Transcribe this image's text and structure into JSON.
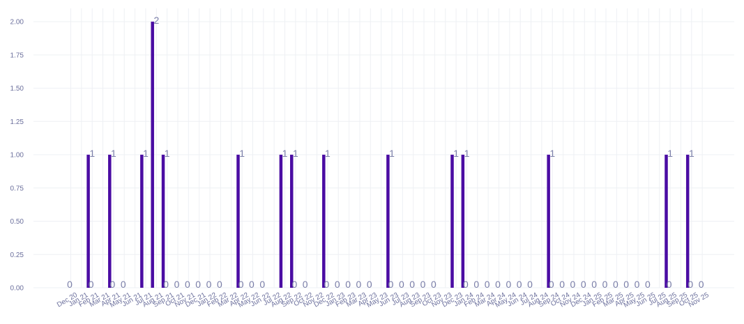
{
  "chart_data": {
    "type": "bar",
    "title": "",
    "xlabel": "",
    "ylabel": "",
    "ylim": [
      0,
      2.1
    ],
    "yticks": [
      "0.00",
      "0.25",
      "0.50",
      "0.75",
      "1.00",
      "1.25",
      "1.50",
      "1.75",
      "2.00"
    ],
    "grid": true,
    "bar_color": "#4a0ca3",
    "categories": [
      "Dec 20",
      "Jan 21",
      "Feb 21",
      "Mar 21",
      "Apr 21",
      "May 21",
      "Jun 21",
      "Jul 21",
      "Aug 21",
      "Sep 21",
      "Oct 21",
      "Nov 21",
      "Dec 21",
      "Jan 22",
      "Feb 22",
      "Mar 22",
      "Apr 22",
      "May 22",
      "Jun 22",
      "Jul 22",
      "Aug 22",
      "Sep 22",
      "Oct 22",
      "Nov 22",
      "Dec 22",
      "Jan 23",
      "Feb 23",
      "Mar 23",
      "Apr 23",
      "May 23",
      "Jun 23",
      "Jul 23",
      "Aug 23",
      "Sep 23",
      "Oct 23",
      "Nov 23",
      "Dec 23",
      "Jan 24",
      "Feb 24",
      "Mar 24",
      "Apr 24",
      "May 24",
      "Jun 24",
      "Jul 24",
      "Aug 24",
      "Sep 24",
      "Oct 24",
      "Nov 24",
      "Dec 24",
      "Jan 25",
      "Feb 25",
      "Mar 25",
      "Apr 25",
      "May 25",
      "Jun 25",
      "Jul 25",
      "Aug 25",
      "Sep 25",
      "Oct 25",
      "Nov 25"
    ],
    "values": [
      0,
      1,
      0,
      1,
      0,
      0,
      1,
      2,
      1,
      0,
      0,
      0,
      0,
      0,
      0,
      1,
      0,
      0,
      0,
      1,
      1,
      0,
      0,
      1,
      0,
      0,
      0,
      0,
      0,
      1,
      0,
      0,
      0,
      0,
      0,
      1,
      1,
      0,
      0,
      0,
      0,
      0,
      0,
      0,
      1,
      0,
      0,
      0,
      0,
      0,
      0,
      0,
      0,
      0,
      0,
      1,
      0,
      1,
      0,
      0
    ]
  }
}
